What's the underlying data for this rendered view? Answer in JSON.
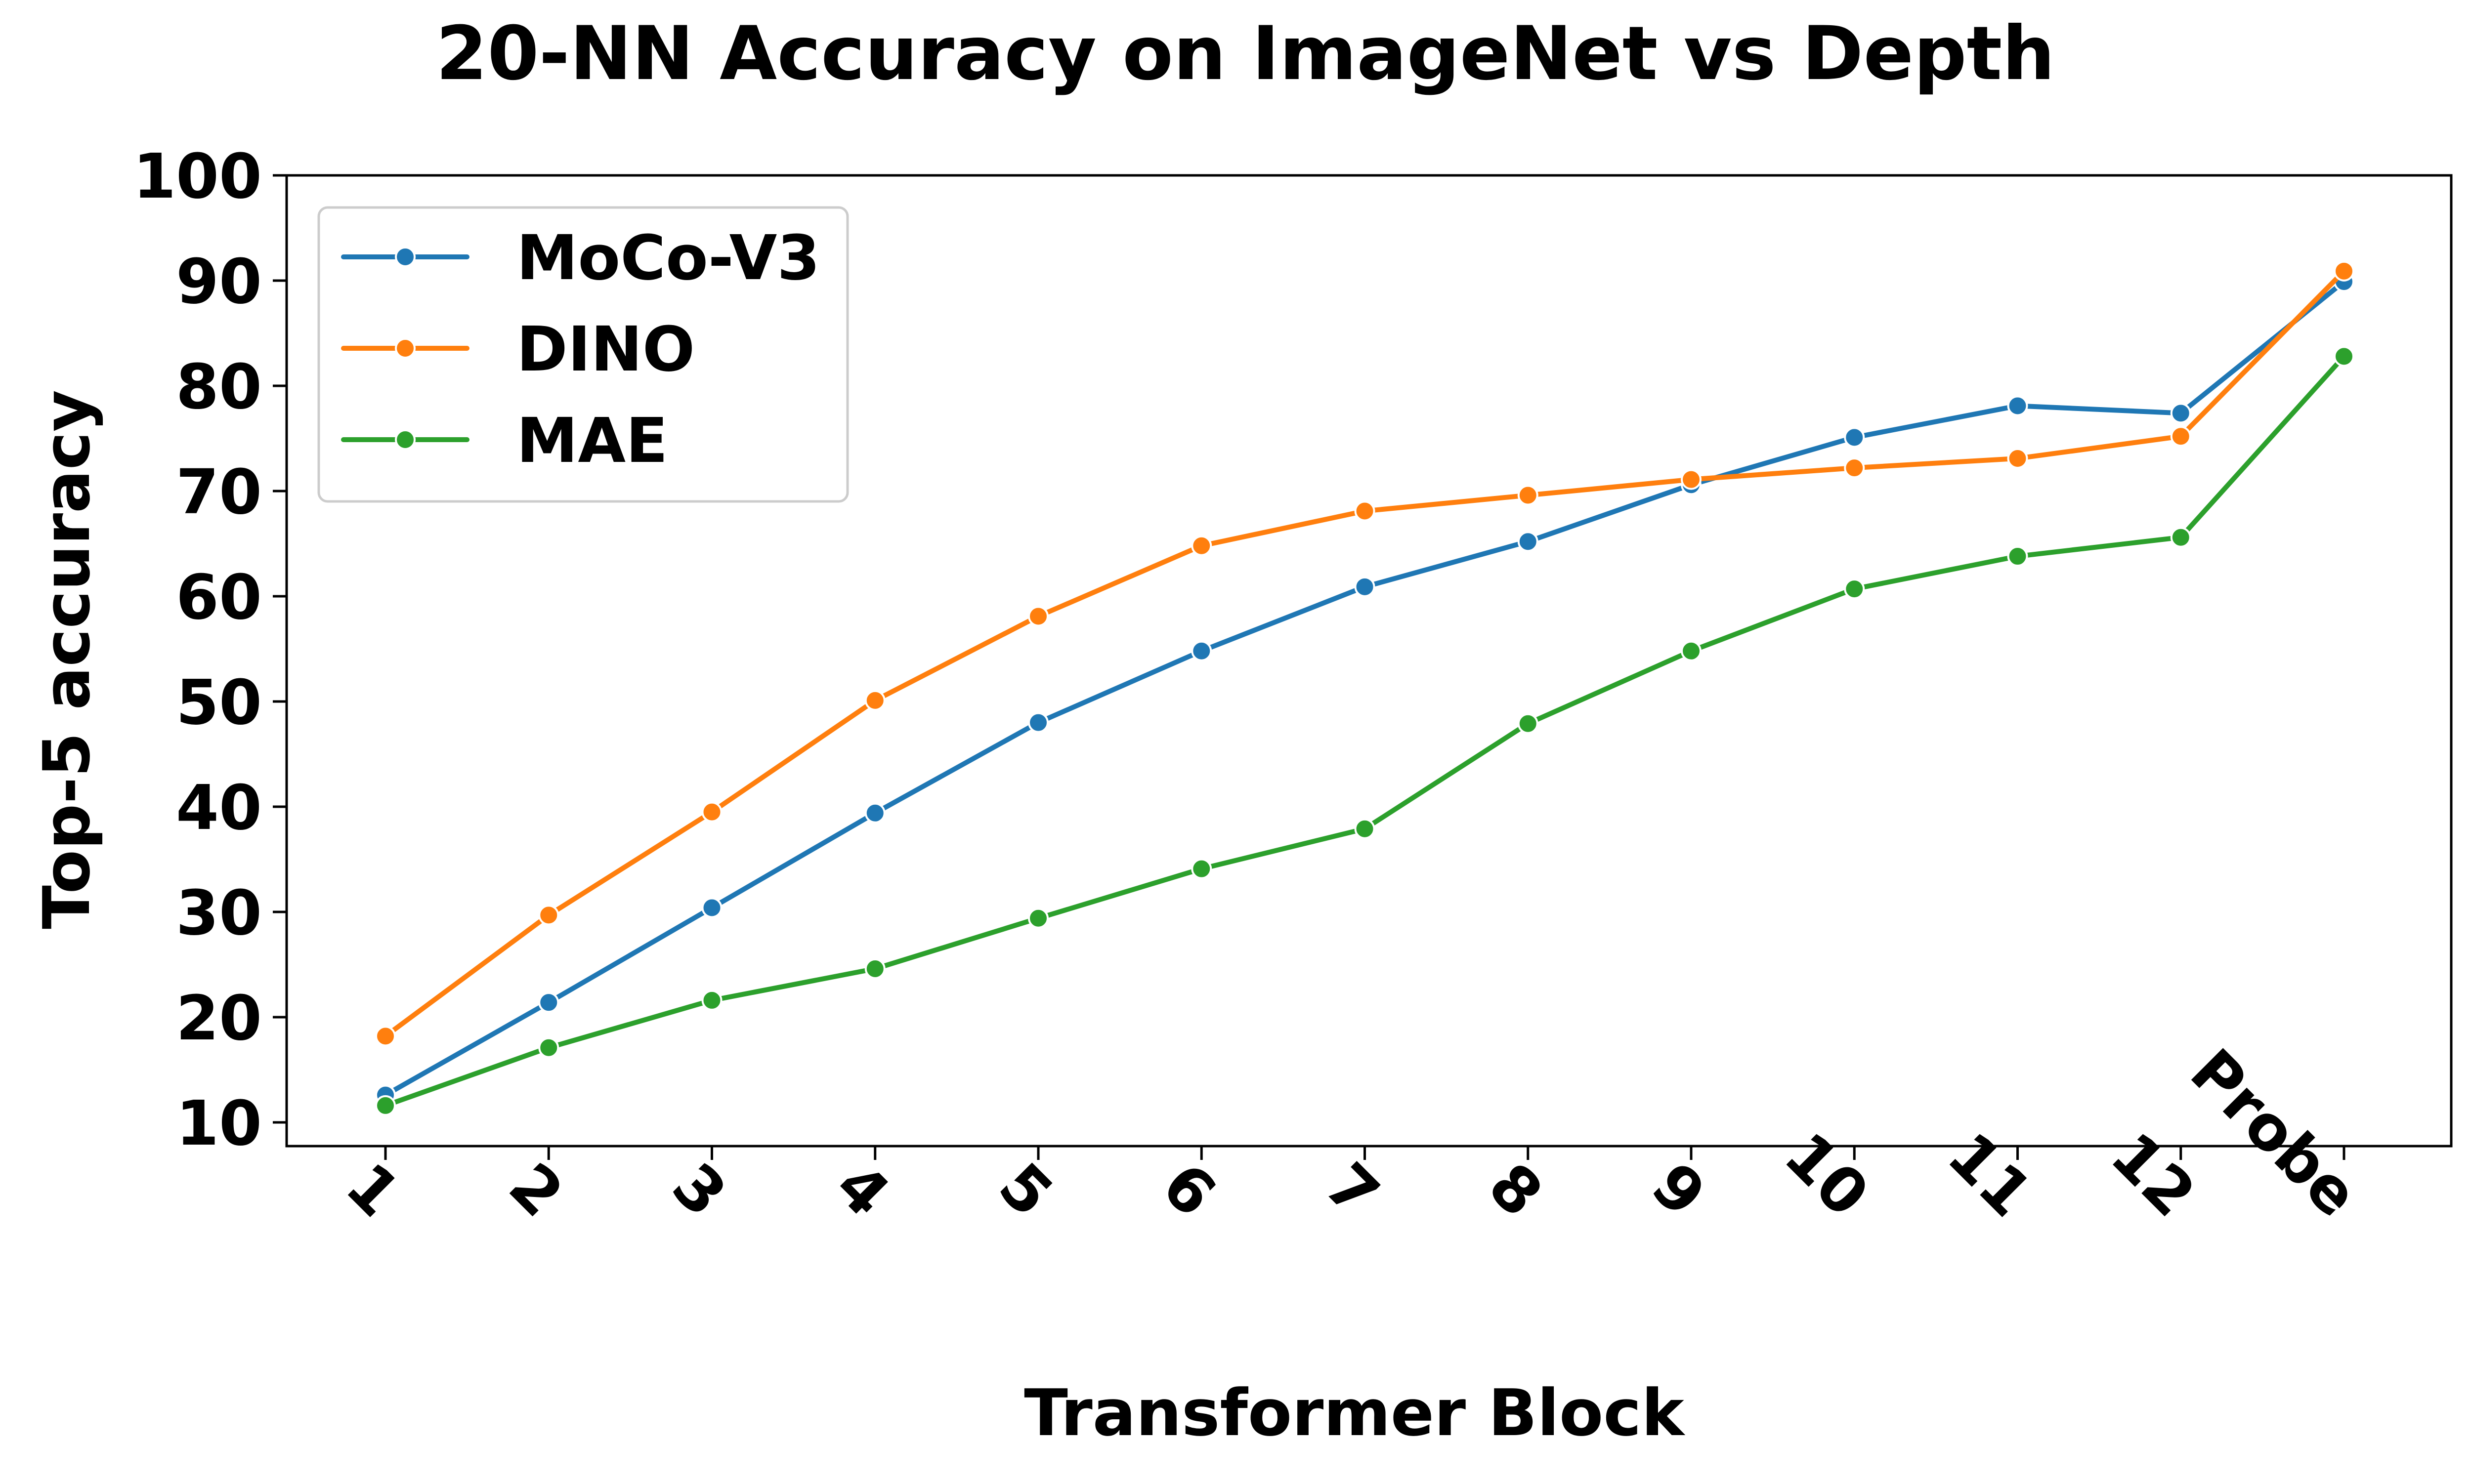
{
  "chart_data": {
    "type": "line",
    "title": "20-NN Accuracy on ImageNet vs Depth",
    "xlabel": "Transformer Block",
    "ylabel": "Top-5 accuracy",
    "categories": [
      "1",
      "2",
      "3",
      "4",
      "5",
      "6",
      "7",
      "8",
      "9",
      "10",
      "11",
      "12",
      "Probe"
    ],
    "ylim": [
      10,
      100
    ],
    "yticks": [
      10,
      20,
      30,
      40,
      50,
      60,
      70,
      80,
      90,
      100
    ],
    "grid": false,
    "legend_position": "top-left",
    "series": [
      {
        "name": "MoCo-V3",
        "color": "#1f77b4",
        "values": [
          12.6,
          21.4,
          30.4,
          39.4,
          48.0,
          54.8,
          60.9,
          65.2,
          70.6,
          75.1,
          78.1,
          77.4,
          89.9
        ]
      },
      {
        "name": "DINO",
        "color": "#ff7f0e",
        "values": [
          18.2,
          29.7,
          39.5,
          50.1,
          58.1,
          64.8,
          68.1,
          69.6,
          71.1,
          72.2,
          73.1,
          75.2,
          90.9
        ]
      },
      {
        "name": "MAE",
        "color": "#2ca02c",
        "values": [
          11.6,
          17.1,
          21.6,
          24.6,
          29.4,
          34.1,
          37.9,
          47.9,
          54.8,
          60.7,
          63.8,
          65.6,
          82.8
        ]
      }
    ]
  }
}
